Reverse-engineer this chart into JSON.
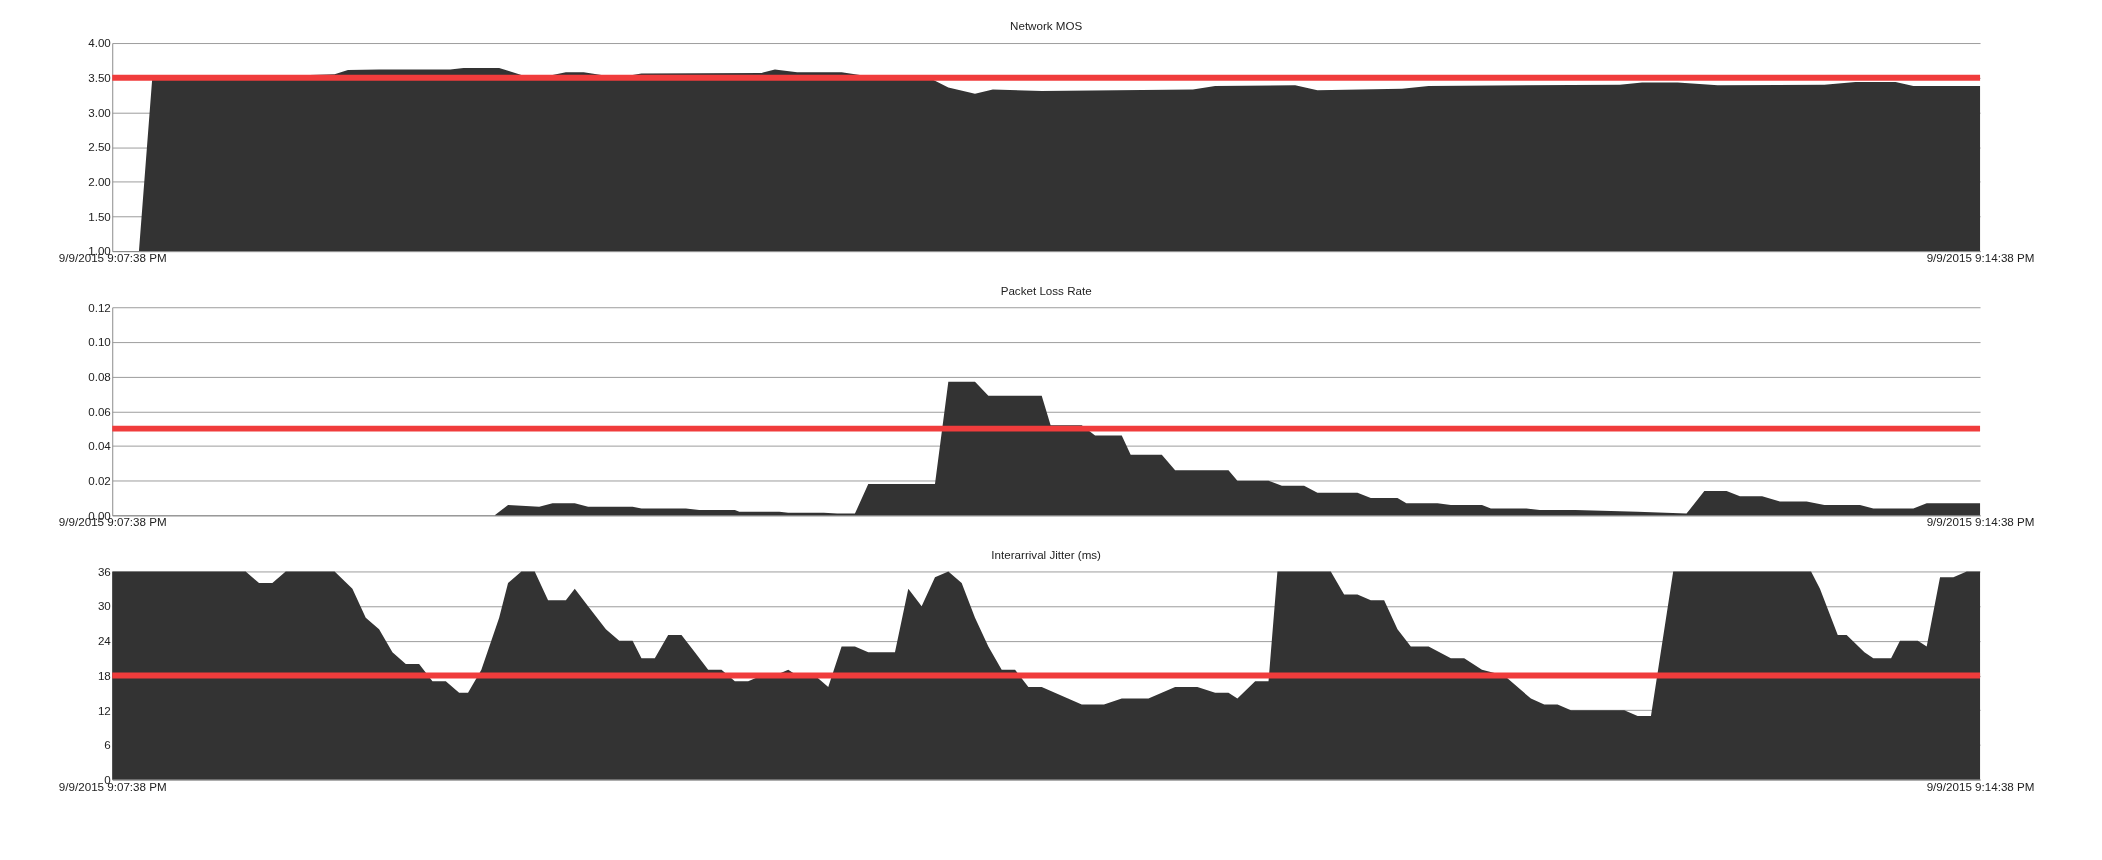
{
  "chart_data": [
    {
      "type": "area",
      "title": "Network MOS",
      "x": [
        "2015-09-09T21:07:44",
        "2015-09-09T21:07:47",
        "2015-09-09T21:08:13",
        "2015-09-09T21:08:28",
        "2015-09-09T21:08:31",
        "2015-09-09T21:08:38",
        "2015-09-09T21:08:54",
        "2015-09-09T21:08:57",
        "2015-09-09T21:09:05",
        "2015-09-09T21:09:07",
        "2015-09-09T21:09:10",
        "2015-09-09T21:09:17",
        "2015-09-09T21:09:20",
        "2015-09-09T21:09:24",
        "2015-09-09T21:09:28",
        "2015-09-09T21:09:35",
        "2015-09-09T21:09:37",
        "2015-09-09T21:10:04",
        "2015-09-09T21:10:07",
        "2015-09-09T21:10:12",
        "2015-09-09T21:10:22",
        "2015-09-09T21:10:28",
        "2015-09-09T21:10:41",
        "2015-09-09T21:10:46",
        "2015-09-09T21:10:52",
        "2015-09-09T21:10:56",
        "2015-09-09T21:11:07",
        "2015-09-09T21:11:41",
        "2015-09-09T21:11:46",
        "2015-09-09T21:12:04",
        "2015-09-09T21:12:09",
        "2015-09-09T21:12:28",
        "2015-09-09T21:12:34",
        "2015-09-09T21:13:17",
        "2015-09-09T21:13:22",
        "2015-09-09T21:13:30",
        "2015-09-09T21:13:39",
        "2015-09-09T21:14:03",
        "2015-09-09T21:14:10",
        "2015-09-09T21:14:19",
        "2015-09-09T21:14:23",
        "2015-09-09T21:14:38"
      ],
      "series": [
        {
          "color": "#333333",
          "values": [
            1.0,
            3.5,
            3.52,
            3.55,
            3.61,
            3.62,
            3.62,
            3.64,
            3.64,
            3.6,
            3.54,
            3.54,
            3.58,
            3.58,
            3.54,
            3.54,
            3.56,
            3.57,
            3.62,
            3.58,
            3.58,
            3.52,
            3.52,
            3.36,
            3.27,
            3.33,
            3.31,
            3.33,
            3.38,
            3.39,
            3.32,
            3.34,
            3.38,
            3.4,
            3.43,
            3.43,
            3.39,
            3.4,
            3.44,
            3.44,
            3.38,
            3.38
          ]
        }
      ],
      "xlim": [
        "2015-09-09T21:07:38",
        "2015-09-09T21:14:38"
      ],
      "xticks": [
        {
          "value": "2015-09-09T21:07:38",
          "label": "9/9/2015 9:07:38 PM"
        },
        {
          "value": "2015-09-09T21:14:38",
          "label": "9/9/2015 9:14:38 PM"
        }
      ],
      "ylim": [
        1.0,
        4.0
      ],
      "yticks": [
        {
          "value": 1.0,
          "label": "1.00"
        },
        {
          "value": 1.5,
          "label": "1.50"
        },
        {
          "value": 2.0,
          "label": "2.00"
        },
        {
          "value": 2.5,
          "label": "2.50"
        },
        {
          "value": 3.0,
          "label": "3.00"
        },
        {
          "value": 3.5,
          "label": "3.50"
        },
        {
          "value": 4.0,
          "label": "4.00"
        }
      ],
      "ref_lines": [
        {
          "axis": "y",
          "value": 3.5,
          "color": "#f03c3c"
        }
      ],
      "grid": "y"
    },
    {
      "type": "area",
      "title": "Packet Loss Rate",
      "x": [
        "2015-09-09T21:07:44",
        "2015-09-09T21:09:04",
        "2015-09-09T21:09:07",
        "2015-09-09T21:09:14",
        "2015-09-09T21:09:17",
        "2015-09-09T21:09:22",
        "2015-09-09T21:09:25",
        "2015-09-09T21:09:35",
        "2015-09-09T21:09:37",
        "2015-09-09T21:09:47",
        "2015-09-09T21:09:50",
        "2015-09-09T21:09:58",
        "2015-09-09T21:09:59",
        "2015-09-09T21:10:08",
        "2015-09-09T21:10:10",
        "2015-09-09T21:10:18",
        "2015-09-09T21:10:21",
        "2015-09-09T21:10:25",
        "2015-09-09T21:10:28",
        "2015-09-09T21:10:43",
        "2015-09-09T21:10:46",
        "2015-09-09T21:10:52",
        "2015-09-09T21:10:55",
        "2015-09-09T21:11:03",
        "2015-09-09T21:11:07",
        "2015-09-09T21:11:09",
        "2015-09-09T21:11:16",
        "2015-09-09T21:11:19",
        "2015-09-09T21:11:25",
        "2015-09-09T21:11:27",
        "2015-09-09T21:11:34",
        "2015-09-09T21:11:37",
        "2015-09-09T21:11:49",
        "2015-09-09T21:11:51",
        "2015-09-09T21:11:58",
        "2015-09-09T21:12:01",
        "2015-09-09T21:12:06",
        "2015-09-09T21:12:09",
        "2015-09-09T21:12:18",
        "2015-09-09T21:12:21",
        "2015-09-09T21:12:27",
        "2015-09-09T21:12:29",
        "2015-09-09T21:12:36",
        "2015-09-09T21:12:39",
        "2015-09-09T21:12:46",
        "2015-09-09T21:12:48",
        "2015-09-09T21:12:56",
        "2015-09-09T21:12:59",
        "2015-09-09T21:13:07",
        "2015-09-09T21:13:21",
        "2015-09-09T21:13:32",
        "2015-09-09T21:13:36",
        "2015-09-09T21:13:41",
        "2015-09-09T21:13:44",
        "2015-09-09T21:13:49",
        "2015-09-09T21:13:53",
        "2015-09-09T21:13:59",
        "2015-09-09T21:14:03",
        "2015-09-09T21:14:11",
        "2015-09-09T21:14:14",
        "2015-09-09T21:14:23",
        "2015-09-09T21:14:26",
        "2015-09-09T21:14:38"
      ],
      "series": [
        {
          "color": "#333333",
          "values": [
            0,
            0,
            0.006,
            0.005,
            0.007,
            0.007,
            0.005,
            0.005,
            0.004,
            0.004,
            0.003,
            0.003,
            0.002,
            0.002,
            0.0015,
            0.0015,
            0.001,
            0.001,
            0.018,
            0.018,
            0.077,
            0.077,
            0.069,
            0.069,
            0.069,
            0.052,
            0.052,
            0.046,
            0.046,
            0.035,
            0.035,
            0.026,
            0.026,
            0.02,
            0.02,
            0.017,
            0.017,
            0.013,
            0.013,
            0.01,
            0.01,
            0.007,
            0.007,
            0.006,
            0.006,
            0.004,
            0.004,
            0.003,
            0.003,
            0.002,
            0.001,
            0.014,
            0.014,
            0.011,
            0.011,
            0.008,
            0.008,
            0.006,
            0.006,
            0.004,
            0.004,
            0.007,
            0.007
          ]
        }
      ],
      "xlim": [
        "2015-09-09T21:07:38",
        "2015-09-09T21:14:38"
      ],
      "xticks": [
        {
          "value": "2015-09-09T21:07:38",
          "label": "9/9/2015 9:07:38 PM"
        },
        {
          "value": "2015-09-09T21:14:38",
          "label": "9/9/2015 9:14:38 PM"
        }
      ],
      "ylim": [
        0,
        0.12
      ],
      "yticks": [
        {
          "value": 0,
          "label": "0.00"
        },
        {
          "value": 0.02,
          "label": "0.02"
        },
        {
          "value": 0.04,
          "label": "0.04"
        },
        {
          "value": 0.06,
          "label": "0.06"
        },
        {
          "value": 0.08,
          "label": "0.08"
        },
        {
          "value": 0.1,
          "label": "0.10"
        },
        {
          "value": 0.12,
          "label": "0.12"
        }
      ],
      "ref_lines": [
        {
          "axis": "y",
          "value": 0.05,
          "color": "#f03c3c"
        }
      ],
      "grid": "y"
    },
    {
      "type": "area",
      "title": "Interarrival Jitter (ms)",
      "x": [
        "2015-09-09T21:07:38",
        "2015-09-09T21:08:08",
        "2015-09-09T21:08:11",
        "2015-09-09T21:08:14",
        "2015-09-09T21:08:17",
        "2015-09-09T21:08:28",
        "2015-09-09T21:08:32",
        "2015-09-09T21:08:35",
        "2015-09-09T21:08:38",
        "2015-09-09T21:08:41",
        "2015-09-09T21:08:44",
        "2015-09-09T21:08:47",
        "2015-09-09T21:08:50",
        "2015-09-09T21:08:53",
        "2015-09-09T21:08:56",
        "2015-09-09T21:08:58",
        "2015-09-09T21:09:01",
        "2015-09-09T21:09:05",
        "2015-09-09T21:09:07",
        "2015-09-09T21:09:10",
        "2015-09-09T21:09:13",
        "2015-09-09T21:09:16",
        "2015-09-09T21:09:20",
        "2015-09-09T21:09:22",
        "2015-09-09T21:09:25",
        "2015-09-09T21:09:29",
        "2015-09-09T21:09:32",
        "2015-09-09T21:09:35",
        "2015-09-09T21:09:37",
        "2015-09-09T21:09:40",
        "2015-09-09T21:09:43",
        "2015-09-09T21:09:46",
        "2015-09-09T21:09:49",
        "2015-09-09T21:09:52",
        "2015-09-09T21:09:55",
        "2015-09-09T21:09:58",
        "2015-09-09T21:10:01",
        "2015-09-09T21:10:04",
        "2015-09-09T21:10:07",
        "2015-09-09T21:10:10",
        "2015-09-09T21:10:12",
        "2015-09-09T21:10:16",
        "2015-09-09T21:10:19",
        "2015-09-09T21:10:22",
        "2015-09-09T21:10:25",
        "2015-09-09T21:10:28",
        "2015-09-09T21:10:34",
        "2015-09-09T21:10:37",
        "2015-09-09T21:10:40",
        "2015-09-09T21:10:43",
        "2015-09-09T21:10:46",
        "2015-09-09T21:10:49",
        "2015-09-09T21:10:52",
        "2015-09-09T21:10:55",
        "2015-09-09T21:10:58",
        "2015-09-09T21:11:01",
        "2015-09-09T21:11:04",
        "2015-09-09T21:11:07",
        "2015-09-09T21:11:16",
        "2015-09-09T21:11:21",
        "2015-09-09T21:11:25",
        "2015-09-09T21:11:31",
        "2015-09-09T21:11:37",
        "2015-09-09T21:11:42",
        "2015-09-09T21:11:46",
        "2015-09-09T21:11:49",
        "2015-09-09T21:11:51",
        "2015-09-09T21:11:55",
        "2015-09-09T21:11:58",
        "2015-09-09T21:12:00",
        "2015-09-09T21:12:12",
        "2015-09-09T21:12:15",
        "2015-09-09T21:12:18",
        "2015-09-09T21:12:21",
        "2015-09-09T21:12:24",
        "2015-09-09T21:12:27",
        "2015-09-09T21:12:30",
        "2015-09-09T21:12:34",
        "2015-09-09T21:12:39",
        "2015-09-09T21:12:42",
        "2015-09-09T21:12:46",
        "2015-09-09T21:12:51",
        "2015-09-09T21:12:57",
        "2015-09-09T21:13:00",
        "2015-09-09T21:13:03",
        "2015-09-09T21:13:06",
        "2015-09-09T21:13:18",
        "2015-09-09T21:13:21",
        "2015-09-09T21:13:24",
        "2015-09-09T21:13:29",
        "2015-09-09T21:14:00",
        "2015-09-09T21:14:02",
        "2015-09-09T21:14:06",
        "2015-09-09T21:14:08",
        "2015-09-09T21:14:12",
        "2015-09-09T21:14:14",
        "2015-09-09T21:14:18",
        "2015-09-09T21:14:20",
        "2015-09-09T21:14:24",
        "2015-09-09T21:14:26",
        "2015-09-09T21:14:29",
        "2015-09-09T21:14:32",
        "2015-09-09T21:14:35",
        "2015-09-09T21:14:38"
      ],
      "series": [
        {
          "color": "#333333",
          "values": [
            36,
            36,
            34,
            34,
            36,
            36,
            33,
            28,
            26,
            22,
            20,
            20,
            17,
            17,
            15,
            15,
            19,
            28,
            34,
            36,
            36,
            31,
            31,
            33,
            30,
            26,
            24,
            24,
            21,
            21,
            25,
            25,
            22,
            19,
            19,
            17,
            17,
            18,
            18,
            19,
            18,
            18,
            16,
            23,
            23,
            22,
            22,
            33,
            30,
            35,
            36,
            34,
            28,
            23,
            19,
            19,
            16,
            16,
            13,
            13,
            14,
            14,
            16,
            16,
            15,
            15,
            14,
            17,
            17,
            36,
            36,
            32,
            32,
            31,
            31,
            26,
            23,
            23,
            21,
            21,
            19,
            18,
            14,
            13,
            13,
            12,
            12,
            11,
            11,
            36,
            36,
            33,
            25,
            25,
            22,
            21,
            21,
            24,
            24,
            23,
            35,
            35,
            36,
            36
          ]
        }
      ],
      "xlim": [
        "2015-09-09T21:07:38",
        "2015-09-09T21:14:38"
      ],
      "xticks": [
        {
          "value": "2015-09-09T21:07:38",
          "label": "9/9/2015 9:07:38 PM"
        },
        {
          "value": "2015-09-09T21:14:38",
          "label": "9/9/2015 9:14:38 PM"
        }
      ],
      "ylim": [
        0,
        36
      ],
      "yticks": [
        0,
        6,
        12,
        18,
        24,
        30,
        36
      ],
      "ref_lines": [
        {
          "axis": "y",
          "value": 18,
          "color": "#f03c3c"
        }
      ],
      "grid": "y"
    }
  ]
}
